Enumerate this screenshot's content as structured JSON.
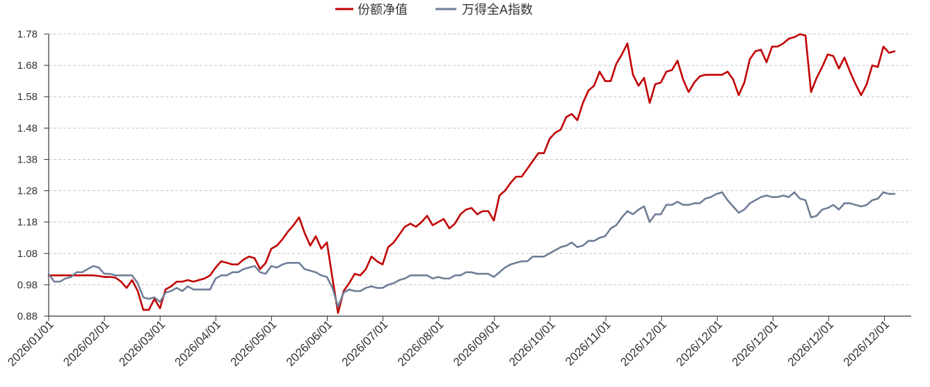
{
  "chart_data": {
    "type": "line",
    "legend_position": "top-center",
    "grid": true,
    "ylim": [
      0.88,
      1.78
    ],
    "y_tick_labels": [
      "0.88",
      "0.98",
      "1.08",
      "1.18",
      "1.28",
      "1.38",
      "1.48",
      "1.58",
      "1.68",
      "1.78"
    ],
    "x_tick_labels": [
      "2026/01/01",
      "2026/02/01",
      "2026/03/01",
      "2026/04/01",
      "2026/05/01",
      "2026/06/01",
      "2026/07/01",
      "2026/08/01",
      "2026/09/01",
      "2026/10/01",
      "2026/11/01",
      "2026/12/01",
      "2026/12/01",
      "2026/12/01",
      "2026/12/01",
      "2026/12/01"
    ],
    "series": [
      {
        "name": "份额净值",
        "color": "#C00000",
        "values": [
          1.01,
          1.01,
          1.01,
          1.01,
          1.01,
          1.01,
          1.01,
          1.01,
          1.01,
          1.008,
          1.005,
          1.005,
          1.003,
          0.99,
          0.97,
          0.995,
          0.96,
          0.9,
          0.9,
          0.935,
          0.905,
          0.965,
          0.975,
          0.99,
          0.99,
          0.995,
          0.99,
          0.995,
          1.0,
          1.01,
          1.035,
          1.055,
          1.05,
          1.045,
          1.045,
          1.06,
          1.07,
          1.065,
          1.03,
          1.05,
          1.095,
          1.105,
          1.125,
          1.15,
          1.17,
          1.195,
          1.145,
          1.105,
          1.135,
          1.095,
          1.115,
          1.0,
          0.89,
          0.96,
          0.985,
          1.015,
          1.01,
          1.03,
          1.07,
          1.055,
          1.045,
          1.1,
          1.115,
          1.14,
          1.165,
          1.175,
          1.165,
          1.18,
          1.2,
          1.17,
          1.18,
          1.19,
          1.16,
          1.175,
          1.205,
          1.22,
          1.225,
          1.205,
          1.215,
          1.215,
          1.185,
          1.265,
          1.28,
          1.305,
          1.325,
          1.325,
          1.35,
          1.375,
          1.4,
          1.4,
          1.445,
          1.465,
          1.475,
          1.515,
          1.525,
          1.505,
          1.56,
          1.6,
          1.615,
          1.66,
          1.63,
          1.63,
          1.685,
          1.715,
          1.75,
          1.65,
          1.615,
          1.64,
          1.56,
          1.62,
          1.625,
          1.66,
          1.665,
          1.695,
          1.635,
          1.595,
          1.625,
          1.645,
          1.65,
          1.65,
          1.65,
          1.65,
          1.66,
          1.635,
          1.585,
          1.625,
          1.7,
          1.725,
          1.73,
          1.69,
          1.74,
          1.74,
          1.75,
          1.765,
          1.77,
          1.78,
          1.775,
          1.595,
          1.64,
          1.675,
          1.715,
          1.71,
          1.67,
          1.705,
          1.66,
          1.62,
          1.585,
          1.62,
          1.68,
          1.675,
          1.74,
          1.72,
          1.725
        ]
      },
      {
        "name": "万得全A指数",
        "color": "#6F7E96",
        "values": [
          1.015,
          0.99,
          0.99,
          1.0,
          1.005,
          1.02,
          1.02,
          1.03,
          1.04,
          1.035,
          1.015,
          1.015,
          1.01,
          1.01,
          1.01,
          1.01,
          0.985,
          0.94,
          0.935,
          0.94,
          0.925,
          0.955,
          0.96,
          0.97,
          0.96,
          0.975,
          0.965,
          0.965,
          0.965,
          0.965,
          1.0,
          1.01,
          1.01,
          1.02,
          1.02,
          1.03,
          1.035,
          1.04,
          1.02,
          1.015,
          1.04,
          1.035,
          1.045,
          1.05,
          1.05,
          1.05,
          1.03,
          1.025,
          1.02,
          1.01,
          1.005,
          0.97,
          0.91,
          0.955,
          0.965,
          0.96,
          0.96,
          0.97,
          0.975,
          0.97,
          0.97,
          0.98,
          0.985,
          0.995,
          1.0,
          1.01,
          1.01,
          1.01,
          1.01,
          1.0,
          1.005,
          1.0,
          1.0,
          1.01,
          1.01,
          1.02,
          1.02,
          1.015,
          1.015,
          1.015,
          1.005,
          1.02,
          1.035,
          1.045,
          1.05,
          1.055,
          1.055,
          1.07,
          1.07,
          1.07,
          1.08,
          1.09,
          1.1,
          1.105,
          1.115,
          1.1,
          1.105,
          1.12,
          1.12,
          1.13,
          1.135,
          1.16,
          1.17,
          1.195,
          1.215,
          1.205,
          1.22,
          1.23,
          1.18,
          1.205,
          1.205,
          1.235,
          1.235,
          1.245,
          1.235,
          1.235,
          1.24,
          1.24,
          1.255,
          1.26,
          1.27,
          1.275,
          1.25,
          1.23,
          1.21,
          1.22,
          1.24,
          1.25,
          1.26,
          1.265,
          1.26,
          1.26,
          1.265,
          1.26,
          1.275,
          1.255,
          1.25,
          1.195,
          1.2,
          1.22,
          1.225,
          1.235,
          1.22,
          1.24,
          1.24,
          1.235,
          1.23,
          1.235,
          1.25,
          1.255,
          1.275,
          1.27,
          1.27
        ]
      }
    ]
  }
}
